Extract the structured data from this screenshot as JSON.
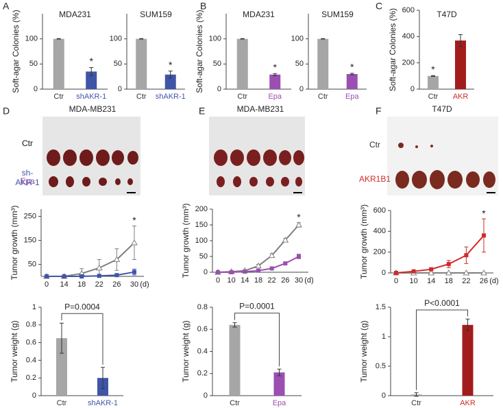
{
  "panel_labels": [
    "A",
    "B",
    "C",
    "D",
    "E",
    "F"
  ],
  "photos": [
    {
      "labels": [
        {
          "lines": [
            "Ctr"
          ],
          "color": "#333333"
        },
        {
          "lines": [
            "sh-",
            "AKR-1"
          ],
          "color": "#3f55a8"
        }
      ]
    },
    {
      "labels": [
        {
          "lines": [
            "Ctr"
          ],
          "color": "#333333"
        },
        {
          "lines": [
            "Epa"
          ],
          "color": "#9b4fb0"
        }
      ]
    },
    {
      "labels": [
        {
          "lines": [
            "Ctr"
          ],
          "color": "#333333"
        },
        {
          "lines": [
            "AKR1B1"
          ],
          "color": "#d12a2a"
        }
      ]
    }
  ],
  "chart_data": [
    {
      "type": "bar",
      "title": "MDA231",
      "ylabel": "Soft-agar Colonies (%)",
      "categories": [
        "Ctr",
        "shAKR-1"
      ],
      "category_colors": [
        "#333333",
        "#3f55a8"
      ],
      "values": [
        100,
        35
      ],
      "errors": [
        0.5,
        8
      ],
      "colors": [
        "#a6a6a6",
        "#3f55a8"
      ],
      "star_labels": [
        null,
        "*"
      ],
      "ylim": [
        0,
        150
      ],
      "yticks": [
        0,
        50,
        100
      ]
    },
    {
      "type": "bar",
      "title": "SUM159",
      "categories": [
        "Ctr",
        "shAKR-1"
      ],
      "category_colors": [
        "#333333",
        "#3f55a8"
      ],
      "values": [
        100,
        29
      ],
      "errors": [
        0.5,
        7
      ],
      "colors": [
        "#a6a6a6",
        "#3f55a8"
      ],
      "star_labels": [
        null,
        "*"
      ],
      "ylim": [
        0,
        150
      ],
      "yticks": [
        0,
        50,
        100
      ]
    },
    {
      "type": "bar",
      "title": "MDA231",
      "ylabel": "Soft-agar Colonies (%)",
      "categories": [
        "Ctr",
        "Epa"
      ],
      "category_colors": [
        "#333333",
        "#9b4fb0"
      ],
      "values": [
        100,
        29
      ],
      "errors": [
        0.5,
        2
      ],
      "colors": [
        "#a6a6a6",
        "#9b4fb0"
      ],
      "star_labels": [
        null,
        "*"
      ],
      "ylim": [
        0,
        150
      ],
      "yticks": [
        0,
        50,
        100
      ]
    },
    {
      "type": "bar",
      "title": "SUM159",
      "categories": [
        "Ctr",
        "Epa"
      ],
      "category_colors": [
        "#333333",
        "#9b4fb0"
      ],
      "values": [
        100,
        30
      ],
      "errors": [
        0.5,
        1.5
      ],
      "colors": [
        "#a6a6a6",
        "#9b4fb0"
      ],
      "star_labels": [
        null,
        "*"
      ],
      "ylim": [
        0,
        150
      ],
      "yticks": [
        0,
        50,
        100
      ]
    },
    {
      "type": "bar",
      "title": "T47D",
      "ylabel": "Soft-agar Colonies (%)",
      "categories": [
        "Ctr",
        "AKR"
      ],
      "category_colors": [
        "#333333",
        "#d12a2a"
      ],
      "values": [
        100,
        370
      ],
      "errors": [
        3,
        45
      ],
      "colors": [
        "#a6a6a6",
        "#a31c1c"
      ],
      "star_labels": [
        "*",
        null
      ],
      "ylim": [
        0,
        600
      ],
      "yticks": [
        0,
        200,
        400,
        600
      ]
    },
    {
      "type": "line",
      "title": "MDA-MB231",
      "ylabel": "Tumor growth (mm³)",
      "xlabel": "(d)",
      "star": "*",
      "categories": [
        "0",
        "14",
        "18",
        "22",
        "26",
        "30"
      ],
      "series": [
        {
          "color": "#7f7f7f",
          "marker": "triangle",
          "values": [
            0,
            0,
            12,
            35,
            70,
            140
          ],
          "errors": [
            0,
            0,
            20,
            35,
            45,
            70
          ]
        },
        {
          "color": "#3f55a8",
          "marker": "square",
          "values": [
            0,
            0,
            0,
            2,
            5,
            18
          ],
          "errors": [
            0,
            0,
            0,
            2,
            4,
            12
          ]
        }
      ],
      "ylim": [
        0,
        280
      ],
      "yticks": [
        50,
        150,
        250
      ]
    },
    {
      "type": "bar",
      "ylabel": "Tumor weight (g)",
      "p_label": "P=0.0004",
      "categories": [
        "Ctr",
        "shAKR-1"
      ],
      "category_colors": [
        "#333333",
        "#3f55a8"
      ],
      "values": [
        0.65,
        0.2
      ],
      "errors": [
        0.17,
        0.12
      ],
      "colors": [
        "#a6a6a6",
        "#3f55a8"
      ],
      "ylim": [
        0,
        1
      ],
      "yticks": [
        0,
        0.2,
        0.4,
        0.6,
        0.8,
        1
      ]
    },
    {
      "type": "line",
      "title": "MDA-MB231",
      "ylabel": "Tumor growth (mm³)",
      "xlabel": "(d)",
      "star": "*",
      "categories": [
        "0",
        "10",
        "14",
        "18",
        "22",
        "26",
        "30"
      ],
      "series": [
        {
          "color": "#7f7f7f",
          "marker": "triangle",
          "values": [
            0,
            2,
            5,
            20,
            53,
            102,
            150
          ],
          "errors": [
            0,
            1,
            2,
            5,
            6,
            5,
            7
          ]
        },
        {
          "color": "#9b4fb0",
          "marker": "square",
          "values": [
            0,
            0,
            2,
            5,
            12,
            28,
            50
          ],
          "errors": [
            0,
            0,
            1,
            2,
            3,
            4,
            7
          ]
        }
      ],
      "ylim": [
        0,
        200
      ],
      "yticks": [
        0,
        50,
        100,
        150,
        200
      ]
    },
    {
      "type": "bar",
      "ylabel": "Tumor weight (g)",
      "p_label": "P=0.0001",
      "categories": [
        "Ctr",
        "Epa"
      ],
      "category_colors": [
        "#333333",
        "#9b4fb0"
      ],
      "values": [
        0.64,
        0.21
      ],
      "errors": [
        0.02,
        0.03
      ],
      "colors": [
        "#a6a6a6",
        "#9b4fb0"
      ],
      "ylim": [
        0,
        0.8
      ],
      "yticks": [
        0,
        0.2,
        0.4,
        0.6,
        0.8
      ]
    },
    {
      "type": "line",
      "title": "T47D",
      "ylabel": "Tumor growth (mm³)",
      "xlabel": "(d)",
      "star": "*",
      "categories": [
        "0",
        "10",
        "14",
        "18",
        "22",
        "26"
      ],
      "series": [
        {
          "color": "#7f7f7f",
          "marker": "triangle",
          "values": [
            0,
            0,
            0,
            0,
            0,
            0
          ],
          "errors": [
            0,
            0,
            0,
            0,
            0,
            0
          ]
        },
        {
          "color": "#d12a2a",
          "marker": "square",
          "values": [
            0,
            15,
            35,
            85,
            170,
            360
          ],
          "errors": [
            0,
            5,
            10,
            35,
            80,
            160
          ]
        }
      ],
      "ylim": [
        0,
        600
      ],
      "yticks": [
        0,
        200,
        400,
        600
      ]
    },
    {
      "type": "bar",
      "ylabel": "Tumor weight (g)",
      "p_label": "P<0.0001",
      "categories": [
        "Ctr",
        "AKR"
      ],
      "category_colors": [
        "#333333",
        "#d12a2a"
      ],
      "values": [
        0.02,
        1.2
      ],
      "errors": [
        0.03,
        0.1
      ],
      "colors": [
        "#a6a6a6",
        "#a31c1c"
      ],
      "ylim": [
        0,
        1.5
      ],
      "yticks": [
        0,
        0.5,
        1,
        1.5
      ]
    }
  ]
}
